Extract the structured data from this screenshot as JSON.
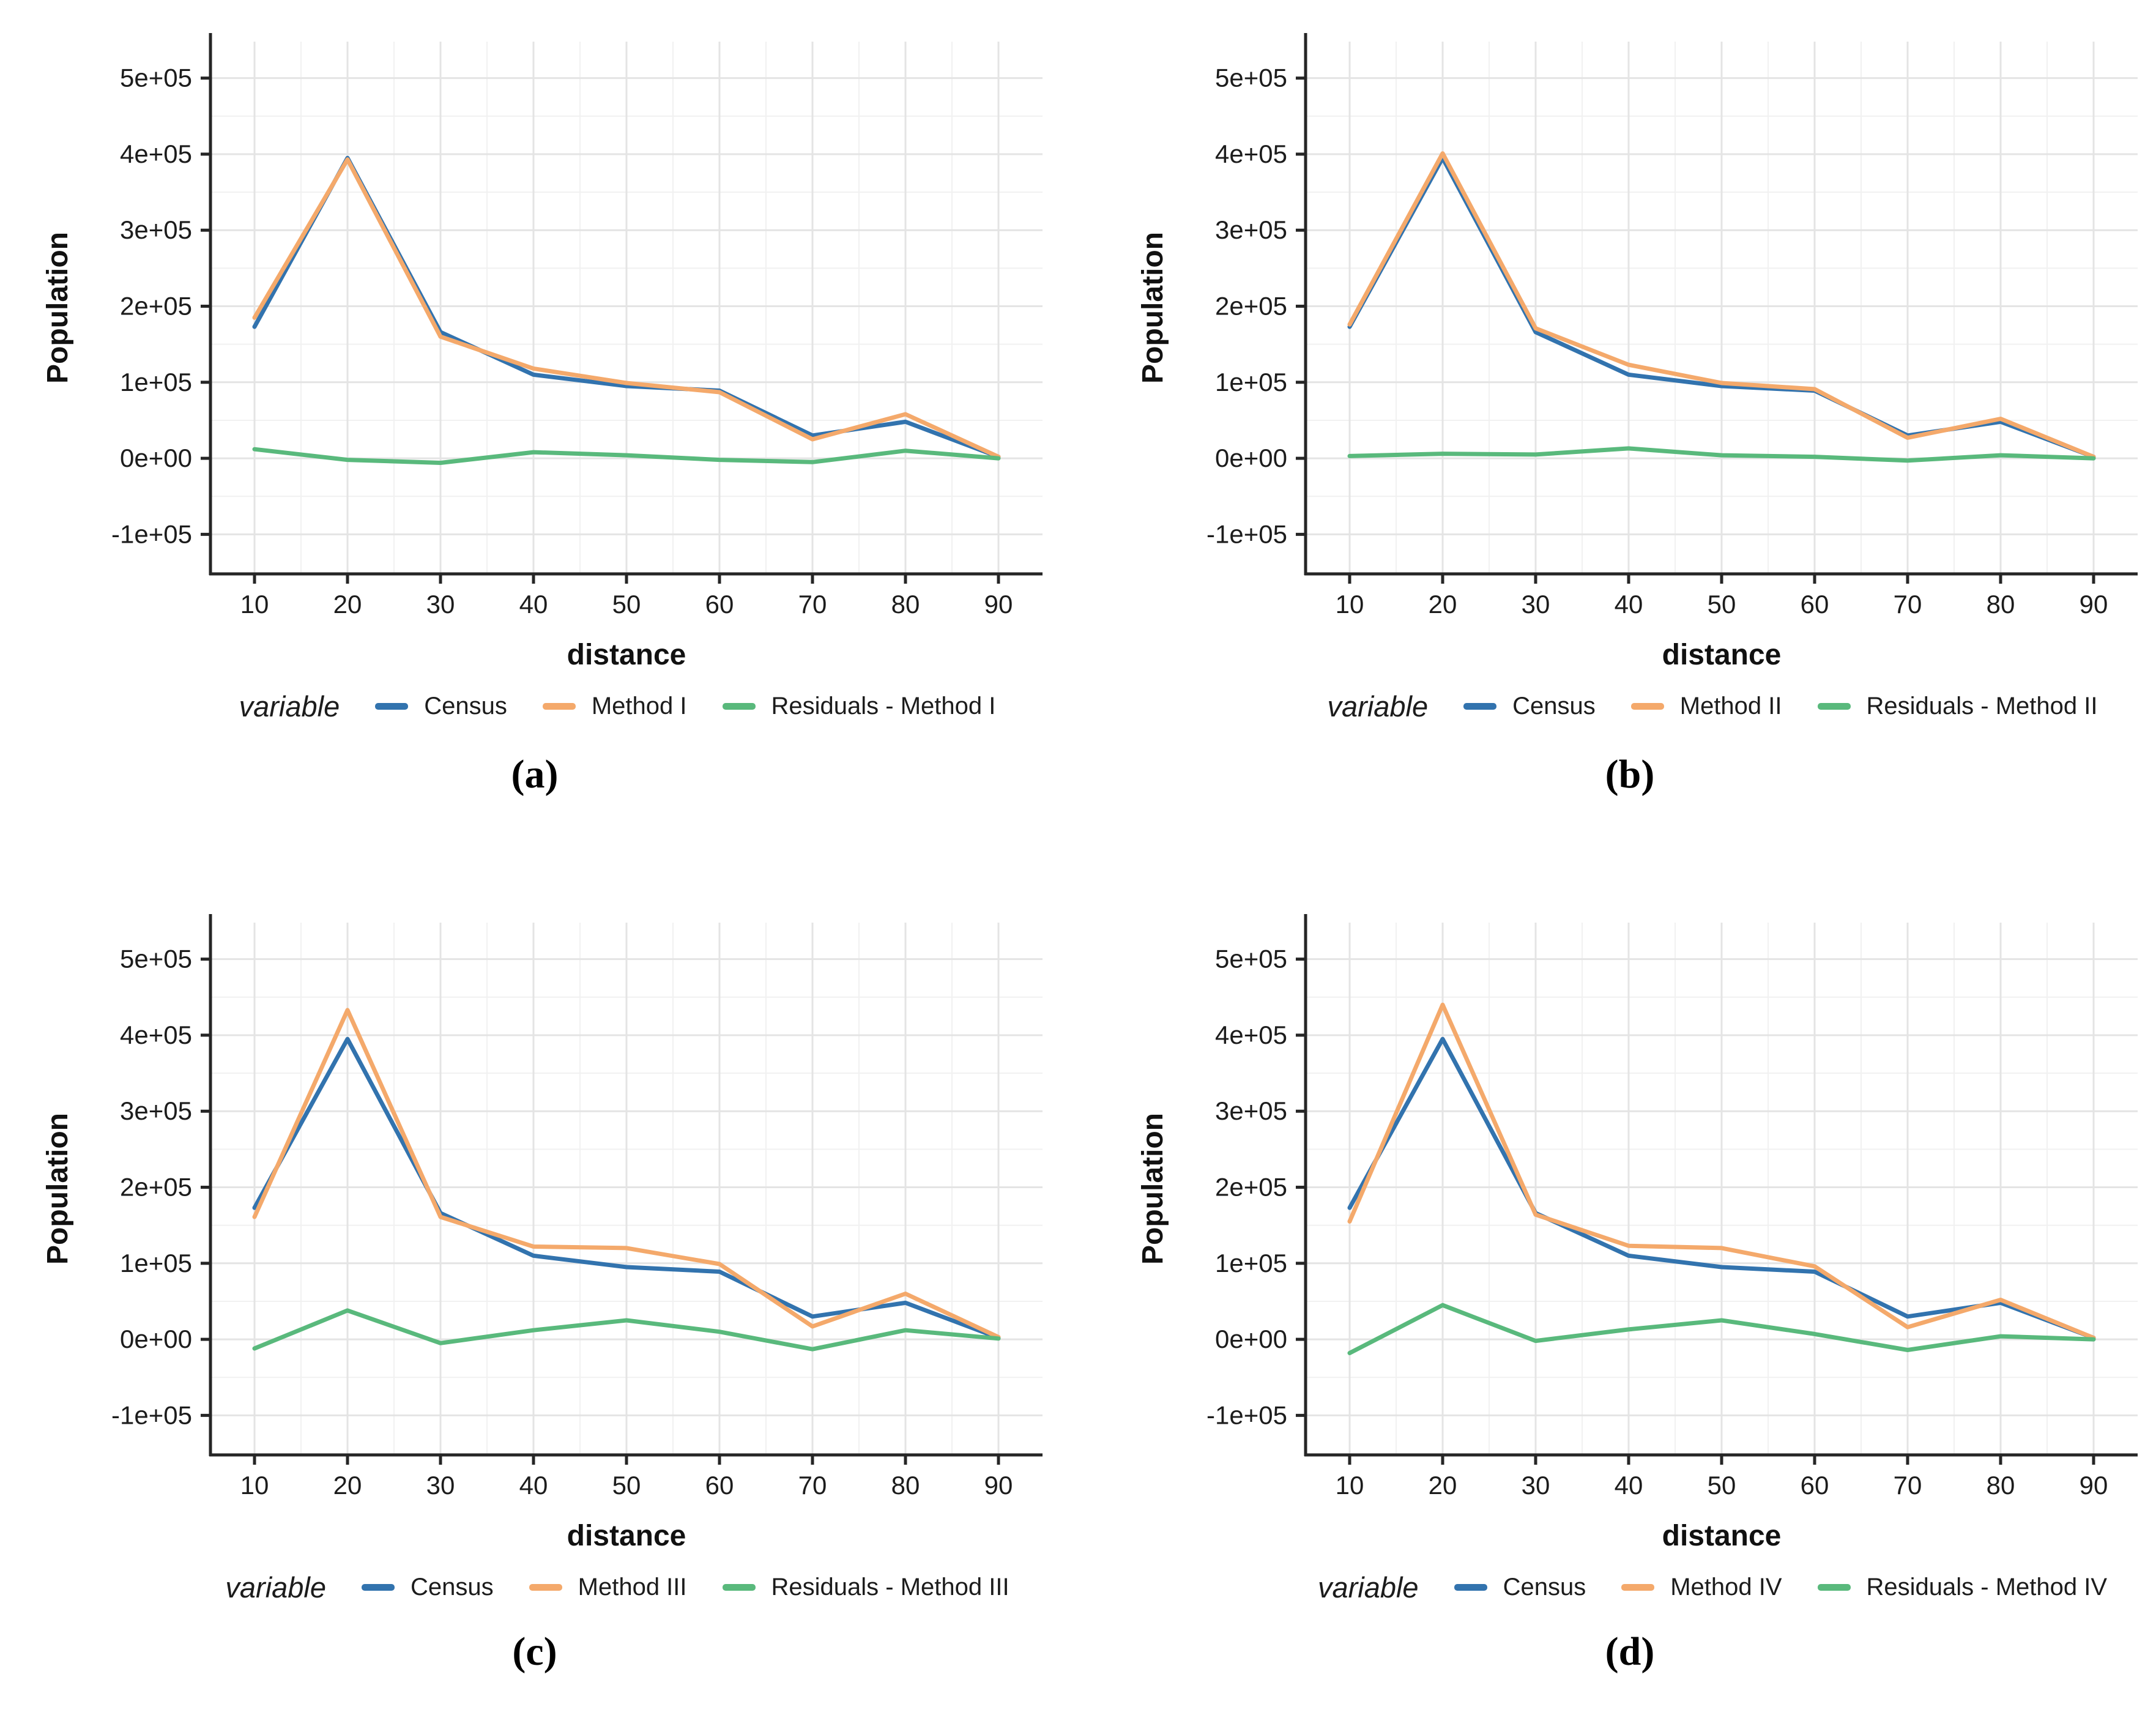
{
  "figure": {
    "captions": [
      "(a)",
      "(b)",
      "(c)",
      "(d)"
    ]
  },
  "colors": {
    "census": "#3273AE",
    "method": "#F4A96B",
    "residuals": "#59B97C",
    "grid_major": "#E4E4E4",
    "grid_minor": "#F1F1F1",
    "axis": "#262626",
    "text": "#1C1C1C"
  },
  "chart_data": [
    {
      "type": "line",
      "xlabel": "distance",
      "ylabel": "Population",
      "legend_title": "variable",
      "x": [
        10,
        20,
        30,
        40,
        50,
        60,
        70,
        80,
        90
      ],
      "x_ticks": [
        10,
        20,
        30,
        40,
        50,
        60,
        70,
        80,
        90
      ],
      "x_minor": [
        15,
        25,
        35,
        45,
        55,
        65,
        75,
        85
      ],
      "y_ticks": {
        "values": [
          500000,
          400000,
          300000,
          200000,
          100000,
          0,
          -100000
        ],
        "labels": [
          "5e+05",
          "4e+05",
          "3e+05",
          "2e+05",
          "1e+05",
          "0e+00",
          "-1e+05"
        ]
      },
      "y_minor": [
        450000,
        350000,
        250000,
        150000,
        50000,
        -50000
      ],
      "ylim": [
        -152000,
        548000
      ],
      "grid": true,
      "legend_position": "bottom",
      "series": [
        {
          "name": "Census",
          "color_key": "census",
          "values": [
            173000,
            395000,
            166000,
            110000,
            95000,
            89000,
            30000,
            48000,
            2000
          ]
        },
        {
          "name": "Method I",
          "color_key": "method",
          "values": [
            185000,
            393000,
            160000,
            118000,
            99000,
            87000,
            25000,
            58000,
            2000
          ]
        },
        {
          "name": "Residuals - Method I",
          "color_key": "residuals",
          "values": [
            12000,
            -2000,
            -6000,
            8000,
            4000,
            -2000,
            -5000,
            10000,
            0
          ]
        }
      ]
    },
    {
      "type": "line",
      "xlabel": "distance",
      "ylabel": "Population",
      "legend_title": "variable",
      "x": [
        10,
        20,
        30,
        40,
        50,
        60,
        70,
        80,
        90
      ],
      "x_ticks": [
        10,
        20,
        30,
        40,
        50,
        60,
        70,
        80,
        90
      ],
      "x_minor": [
        15,
        25,
        35,
        45,
        55,
        65,
        75,
        85
      ],
      "y_ticks": {
        "values": [
          500000,
          400000,
          300000,
          200000,
          100000,
          0,
          -100000
        ],
        "labels": [
          "5e+05",
          "4e+05",
          "3e+05",
          "2e+05",
          "1e+05",
          "0e+00",
          "-1e+05"
        ]
      },
      "y_minor": [
        450000,
        350000,
        250000,
        150000,
        50000,
        -50000
      ],
      "ylim": [
        -152000,
        548000
      ],
      "grid": true,
      "legend_position": "bottom",
      "series": [
        {
          "name": "Census",
          "color_key": "census",
          "values": [
            173000,
            395000,
            166000,
            110000,
            95000,
            89000,
            30000,
            48000,
            2000
          ]
        },
        {
          "name": "Method II",
          "color_key": "method",
          "values": [
            176000,
            401000,
            171000,
            123000,
            99000,
            91000,
            27000,
            52000,
            2000
          ]
        },
        {
          "name": "Residuals - Method II",
          "color_key": "residuals",
          "values": [
            3000,
            6000,
            5000,
            13000,
            4000,
            2000,
            -3000,
            4000,
            0
          ]
        }
      ]
    },
    {
      "type": "line",
      "xlabel": "distance",
      "ylabel": "Population",
      "legend_title": "variable",
      "x": [
        10,
        20,
        30,
        40,
        50,
        60,
        70,
        80,
        90
      ],
      "x_ticks": [
        10,
        20,
        30,
        40,
        50,
        60,
        70,
        80,
        90
      ],
      "x_minor": [
        15,
        25,
        35,
        45,
        55,
        65,
        75,
        85
      ],
      "y_ticks": {
        "values": [
          500000,
          400000,
          300000,
          200000,
          100000,
          0,
          -100000
        ],
        "labels": [
          "5e+05",
          "4e+05",
          "3e+05",
          "2e+05",
          "1e+05",
          "0e+00",
          "-1e+05"
        ]
      },
      "y_minor": [
        450000,
        350000,
        250000,
        150000,
        50000,
        -50000
      ],
      "ylim": [
        -152000,
        548000
      ],
      "grid": true,
      "legend_position": "bottom",
      "series": [
        {
          "name": "Census",
          "color_key": "census",
          "values": [
            173000,
            395000,
            166000,
            110000,
            95000,
            89000,
            30000,
            48000,
            2000
          ]
        },
        {
          "name": "Method III",
          "color_key": "method",
          "values": [
            161000,
            433000,
            161000,
            122000,
            120000,
            99000,
            17000,
            60000,
            3000
          ]
        },
        {
          "name": "Residuals - Method III",
          "color_key": "residuals",
          "values": [
            -12000,
            38000,
            -5000,
            12000,
            25000,
            10000,
            -13000,
            12000,
            1000
          ]
        }
      ]
    },
    {
      "type": "line",
      "xlabel": "distance",
      "ylabel": "Population",
      "legend_title": "variable",
      "x": [
        10,
        20,
        30,
        40,
        50,
        60,
        70,
        80,
        90
      ],
      "x_ticks": [
        10,
        20,
        30,
        40,
        50,
        60,
        70,
        80,
        90
      ],
      "x_minor": [
        15,
        25,
        35,
        45,
        55,
        65,
        75,
        85
      ],
      "y_ticks": {
        "values": [
          500000,
          400000,
          300000,
          200000,
          100000,
          0,
          -100000
        ],
        "labels": [
          "5e+05",
          "4e+05",
          "3e+05",
          "2e+05",
          "1e+05",
          "0e+00",
          "-1e+05"
        ]
      },
      "y_minor": [
        450000,
        350000,
        250000,
        150000,
        50000,
        -50000
      ],
      "ylim": [
        -152000,
        548000
      ],
      "grid": true,
      "legend_position": "bottom",
      "series": [
        {
          "name": "Census",
          "color_key": "census",
          "values": [
            173000,
            395000,
            166000,
            110000,
            95000,
            89000,
            30000,
            48000,
            2000
          ]
        },
        {
          "name": "Method IV",
          "color_key": "method",
          "values": [
            155000,
            440000,
            164000,
            123000,
            120000,
            96000,
            16000,
            52000,
            2000
          ]
        },
        {
          "name": "Residuals - Method IV",
          "color_key": "residuals",
          "values": [
            -18000,
            45000,
            -2000,
            13000,
            25000,
            7000,
            -14000,
            4000,
            0
          ]
        }
      ]
    }
  ]
}
